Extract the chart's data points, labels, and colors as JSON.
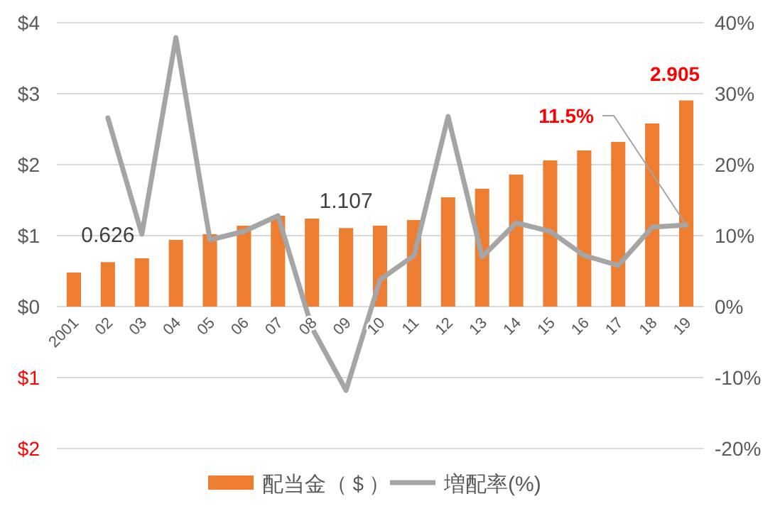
{
  "chart_data": {
    "type": "bar",
    "categories": [
      "2001",
      "02",
      "03",
      "04",
      "05",
      "06",
      "07",
      "08",
      "09",
      "10",
      "11",
      "12",
      "13",
      "14",
      "15",
      "16",
      "17",
      "18",
      "19"
    ],
    "series": [
      {
        "name": "配当金（＄）",
        "color": "#ed7d31",
        "values": [
          0.48,
          0.626,
          0.68,
          0.94,
          1.02,
          1.14,
          1.28,
          1.24,
          1.107,
          1.14,
          1.22,
          1.54,
          1.66,
          1.86,
          2.06,
          2.2,
          2.32,
          2.58,
          2.905
        ],
        "value_labels": [
          null,
          "0.626",
          null,
          null,
          null,
          null,
          null,
          null,
          "1.107",
          null,
          null,
          null,
          null,
          null,
          null,
          null,
          null,
          null,
          "2.905"
        ]
      },
      {
        "name": "増配率(%)",
        "type": "line",
        "axis": "y2",
        "color": "#a5a5a5",
        "values": [
          null,
          26.6,
          10.2,
          37.9,
          9.4,
          10.6,
          12.8,
          -3.0,
          -11.8,
          3.8,
          7.2,
          26.8,
          7.0,
          11.8,
          10.6,
          7.2,
          5.8,
          11.2,
          11.5
        ],
        "value_labels": [
          null,
          null,
          null,
          null,
          null,
          null,
          null,
          null,
          null,
          null,
          null,
          null,
          null,
          null,
          null,
          null,
          null,
          null,
          "11.5%"
        ]
      }
    ],
    "ylim": [
      -2,
      4
    ],
    "yticks": [
      {
        "value": 4,
        "label": "$4"
      },
      {
        "value": 3,
        "label": "$3"
      },
      {
        "value": 2,
        "label": "$2"
      },
      {
        "value": 1,
        "label": "$1"
      },
      {
        "value": 0,
        "label": "$0"
      },
      {
        "value": -1,
        "label": "$1"
      },
      {
        "value": -2,
        "label": "$2"
      }
    ],
    "y2lim": [
      -20,
      40
    ],
    "y2ticks": [
      {
        "value": 40,
        "label": "40%"
      },
      {
        "value": 30,
        "label": "30%"
      },
      {
        "value": 20,
        "label": "20%"
      },
      {
        "value": 10,
        "label": "10%"
      },
      {
        "value": 0,
        "label": "0%"
      },
      {
        "value": -10,
        "label": "-10%"
      },
      {
        "value": -20,
        "label": "-20%"
      }
    ],
    "grid": "y",
    "legend": "bottom",
    "marker": "none",
    "line_style": "solid"
  }
}
